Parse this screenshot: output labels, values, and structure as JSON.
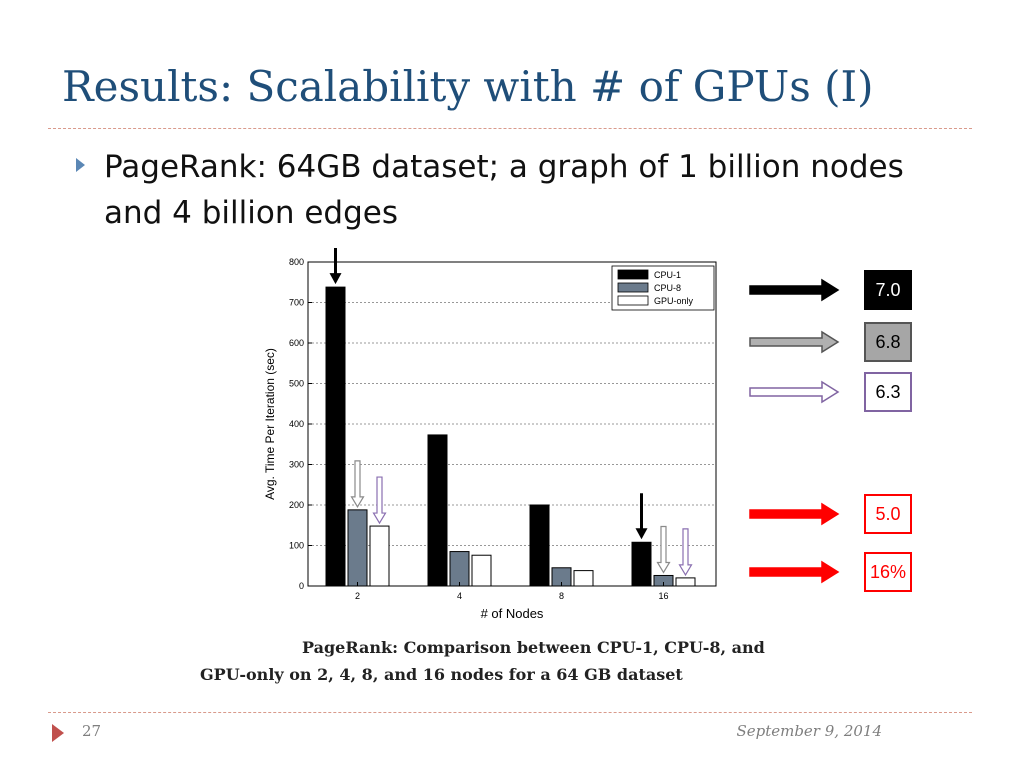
{
  "slide": {
    "title": "Results: Scalability with # of GPUs (I)",
    "bullet": "PageRank: 64GB dataset; a graph of 1 billion nodes and 4 billion edges",
    "caption_line1": "PageRank: Comparison between CPU-1, CPU-8, and",
    "caption_line2": "GPU-only on 2, 4, 8, and 16 nodes for a 64 GB dataset",
    "slide_number": "27",
    "date": "September 9, 2014"
  },
  "chart_data": {
    "type": "bar",
    "ylabel": "Avg. Time Per Iteration (sec)",
    "xlabel": "# of Nodes",
    "categories": [
      "2",
      "4",
      "8",
      "16"
    ],
    "ylim": [
      0,
      800
    ],
    "yticks": [
      0,
      100,
      200,
      300,
      400,
      500,
      600,
      700,
      800
    ],
    "grid": true,
    "legend_position": "top-right",
    "series": [
      {
        "name": "CPU-1",
        "color": "#000000",
        "values": [
          738,
          373,
          200,
          108
        ]
      },
      {
        "name": "CPU-8",
        "color": "#6b7b8c",
        "values": [
          188,
          85,
          45,
          26
        ]
      },
      {
        "name": "GPU-only",
        "color": "#ffffff",
        "values": [
          148,
          76,
          38,
          20
        ]
      }
    ],
    "annotations": [
      {
        "category": "2",
        "series": "CPU-1",
        "color": "#000000"
      },
      {
        "category": "2",
        "series": "CPU-8",
        "color": "#8a8a8a"
      },
      {
        "category": "2",
        "series": "GPU-only",
        "color": "#8a6fb0"
      },
      {
        "category": "16",
        "series": "CPU-1",
        "color": "#000000"
      },
      {
        "category": "16",
        "series": "CPU-8",
        "color": "#8a8a8a"
      },
      {
        "category": "16",
        "series": "GPU-only",
        "color": "#8a6fb0"
      }
    ]
  },
  "speedups": [
    {
      "label": "7.0",
      "arrow_fill": "#000000",
      "arrow_stroke": "#000000",
      "box_bg": "#000000",
      "box_border": "#000000",
      "text_color": "#ffffff"
    },
    {
      "label": "6.8",
      "arrow_fill": "#b0b0b0",
      "arrow_stroke": "#555555",
      "box_bg": "#a6a6a6",
      "box_border": "#555555",
      "text_color": "#000000"
    },
    {
      "label": "6.3",
      "arrow_fill": "#ffffff",
      "arrow_stroke": "#8064a2",
      "box_bg": "#ffffff",
      "box_border": "#8064a2",
      "text_color": "#000000"
    },
    {
      "label": "5.0",
      "arrow_fill": "#ff0000",
      "arrow_stroke": "#ff0000",
      "box_bg": "#ffffff",
      "box_border": "#ff0000",
      "text_color": "#ff0000"
    },
    {
      "label": "16%",
      "arrow_fill": "#ff0000",
      "arrow_stroke": "#ff0000",
      "box_bg": "#ffffff",
      "box_border": "#ff0000",
      "text_color": "#ff0000"
    }
  ]
}
